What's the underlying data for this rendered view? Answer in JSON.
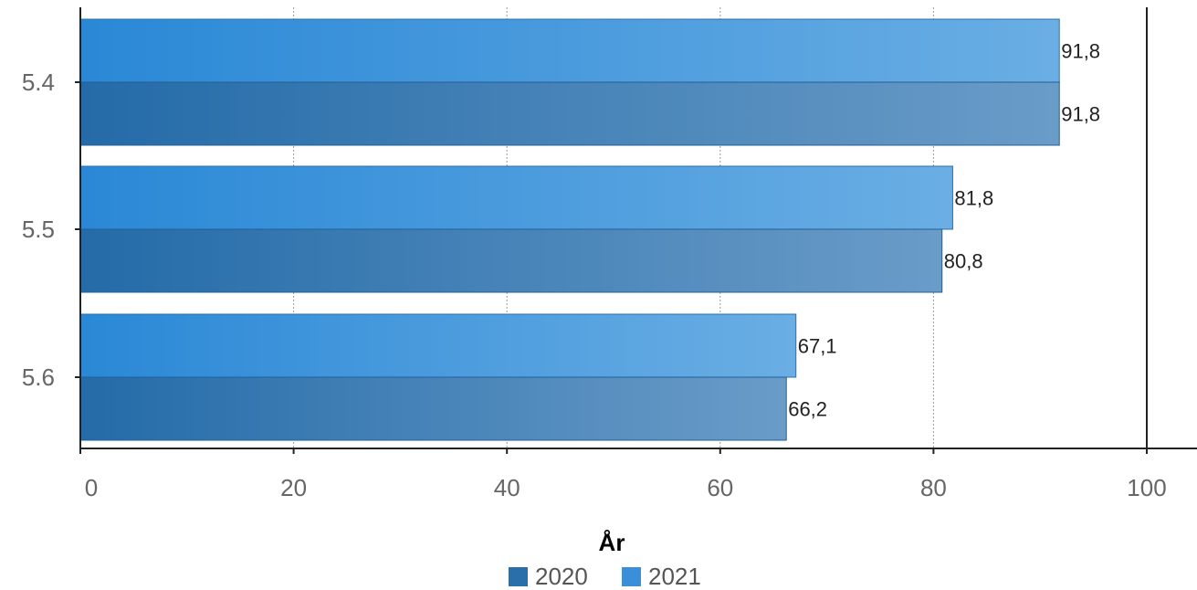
{
  "chart_data": {
    "type": "bar",
    "orientation": "horizontal",
    "categories": [
      "5.4",
      "5.5",
      "5.6"
    ],
    "series": [
      {
        "name": "2020",
        "values": [
          91.8,
          80.8,
          66.2
        ],
        "color": "#2b6faa"
      },
      {
        "name": "2021",
        "values": [
          91.8,
          81.8,
          67.1
        ],
        "color": "#3a8fd8"
      }
    ],
    "value_labels": {
      "2020": [
        "91,8",
        "80,8",
        "66,2"
      ],
      "2021": [
        "91,8",
        "81,8",
        "67,1"
      ]
    },
    "xlim": [
      0,
      100
    ],
    "x_ticks": [
      0,
      20,
      40,
      60,
      80,
      100
    ],
    "x_tick_labels": [
      "0",
      "20",
      "40",
      "60",
      "80",
      "100"
    ],
    "legend_title": "År",
    "legend_position": "bottom",
    "grid": "vertical-dashed"
  }
}
